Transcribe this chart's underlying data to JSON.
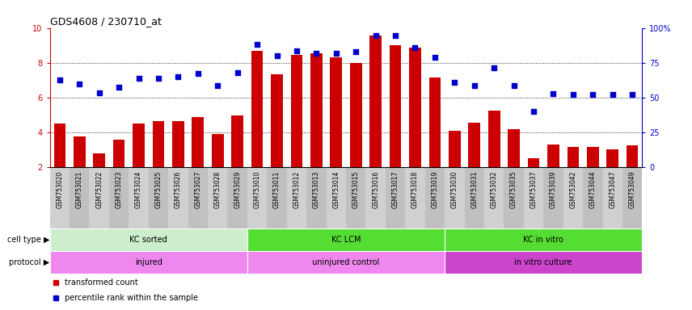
{
  "title": "GDS4608 / 230710_at",
  "samples": [
    "GSM753020",
    "GSM753021",
    "GSM753022",
    "GSM753023",
    "GSM753024",
    "GSM753025",
    "GSM753026",
    "GSM753027",
    "GSM753028",
    "GSM753029",
    "GSM753010",
    "GSM753011",
    "GSM753012",
    "GSM753013",
    "GSM753014",
    "GSM753015",
    "GSM753016",
    "GSM753017",
    "GSM753018",
    "GSM753019",
    "GSM753030",
    "GSM753031",
    "GSM753032",
    "GSM753035",
    "GSM753037",
    "GSM753039",
    "GSM753042",
    "GSM753044",
    "GSM753047",
    "GSM753049"
  ],
  "bar_values": [
    4.5,
    3.8,
    2.8,
    3.6,
    4.5,
    4.65,
    4.65,
    4.9,
    3.9,
    5.0,
    8.7,
    7.35,
    8.45,
    8.55,
    8.3,
    8.0,
    9.55,
    9.0,
    8.85,
    7.15,
    4.1,
    4.55,
    5.25,
    4.2,
    2.55,
    3.3,
    3.2,
    3.2,
    3.05,
    3.25
  ],
  "dot_values": [
    7.0,
    6.8,
    6.3,
    6.6,
    7.1,
    7.1,
    7.2,
    7.4,
    6.7,
    7.45,
    9.05,
    8.4,
    8.7,
    8.55,
    8.55,
    8.65,
    9.55,
    9.55,
    8.85,
    8.3,
    6.9,
    6.7,
    7.7,
    6.7,
    5.2,
    6.25,
    6.2,
    6.2,
    6.2,
    6.2
  ],
  "bar_color": "#cc0000",
  "dot_color": "#0000cc",
  "y_min": 2,
  "y_max": 10,
  "yticks_left": [
    2,
    4,
    6,
    8,
    10
  ],
  "right_tick_labels": [
    "0",
    "25",
    "50",
    "75",
    "100%"
  ],
  "grid_lines": [
    4,
    6,
    8
  ],
  "cell_type_groups": [
    {
      "label": "KC sorted",
      "start": 0,
      "end": 9,
      "color": "#cceecc"
    },
    {
      "label": "KC LCM",
      "start": 10,
      "end": 19,
      "color": "#55dd33"
    },
    {
      "label": "KC in vitro",
      "start": 20,
      "end": 29,
      "color": "#55dd33"
    }
  ],
  "protocol_groups": [
    {
      "label": "injured",
      "start": 0,
      "end": 9,
      "color": "#ee88ee"
    },
    {
      "label": "uninjured control",
      "start": 10,
      "end": 19,
      "color": "#ee88ee"
    },
    {
      "label": "in vitro culture",
      "start": 20,
      "end": 29,
      "color": "#cc44cc"
    }
  ],
  "legend_bar_label": "transformed count",
  "legend_dot_label": "percentile rank within the sample",
  "cell_type_label": "cell type",
  "protocol_label": "protocol",
  "bg_color": "#ffffff",
  "xtick_bg_even": "#d0d0d0",
  "xtick_bg_odd": "#c0c0c0"
}
